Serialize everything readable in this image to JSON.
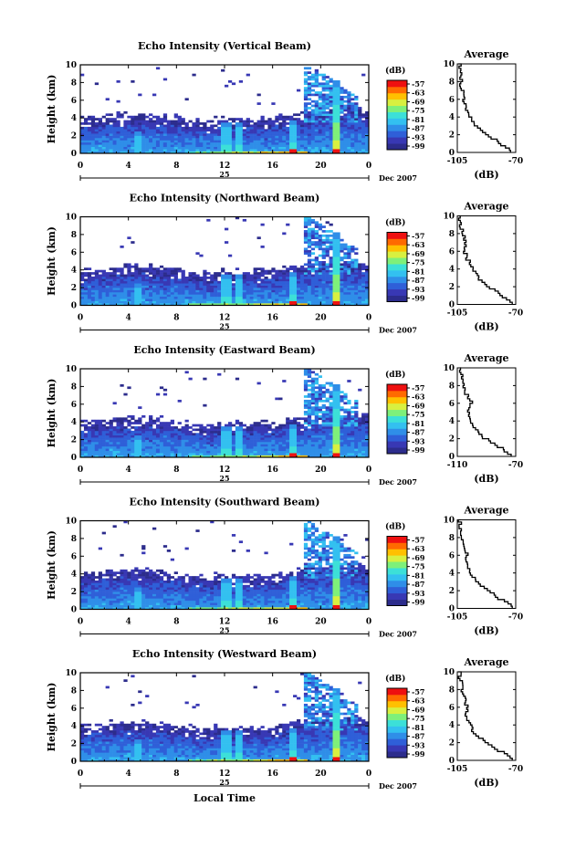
{
  "colors": {
    "scale": [
      "#2c2c8c",
      "#3838b4",
      "#2f5fd8",
      "#2f8ee8",
      "#33c0f0",
      "#3ce0d8",
      "#7ef07a",
      "#d8f040",
      "#ffc000",
      "#ff6a00",
      "#ee1010"
    ],
    "frame": "#000000"
  },
  "chart_data": [
    {
      "type": "heatmap",
      "title": "Echo Intensity (Vertical Beam)",
      "ylabel": "Height (km)",
      "xlabel": "",
      "x_ticks": [
        "0",
        "4",
        "8",
        "12",
        "16",
        "20",
        "0"
      ],
      "x_range": [
        0,
        24
      ],
      "y_ticks": [
        "0",
        "2",
        "4",
        "6",
        "8",
        "10"
      ],
      "y_range": [
        0,
        10
      ],
      "date_day": "25",
      "date_month": "Dec 2007",
      "colorbar": {
        "unit": "(dB)",
        "ticks": [
          "-57",
          "-63",
          "-69",
          "-75",
          "-81",
          "-87",
          "-93",
          "-99"
        ]
      },
      "profile": {
        "title": "Average",
        "xlabel": "(dB)",
        "x_ticks": [
          "-105",
          "-70"
        ],
        "x_range": [
          -105,
          -70
        ],
        "y_ticks": [
          "0",
          "2",
          "4",
          "6",
          "8",
          "10"
        ],
        "y_range": [
          0,
          10
        ],
        "values": [
          -72,
          -80,
          -88,
          -94,
          -97,
          -100,
          -101,
          -102,
          -103,
          -103,
          -104
        ]
      }
    },
    {
      "type": "heatmap",
      "title": "Echo Intensity (Northward Beam)",
      "ylabel": "Height (km)",
      "xlabel": "",
      "x_ticks": [
        "0",
        "4",
        "8",
        "12",
        "16",
        "20",
        "0"
      ],
      "x_range": [
        0,
        24
      ],
      "y_ticks": [
        "0",
        "2",
        "4",
        "6",
        "8",
        "10"
      ],
      "y_range": [
        0,
        10
      ],
      "date_day": "25",
      "date_month": "Dec 2007",
      "colorbar": {
        "unit": "(dB)",
        "ticks": [
          "-57",
          "-63",
          "-69",
          "-75",
          "-81",
          "-87",
          "-93",
          "-99"
        ]
      },
      "profile": {
        "title": "Average",
        "xlabel": "(dB)",
        "x_ticks": [
          "-105",
          "-70"
        ],
        "x_range": [
          -105,
          -70
        ],
        "y_ticks": [
          "0",
          "2",
          "4",
          "6",
          "8",
          "10"
        ],
        "y_range": [
          0,
          10
        ],
        "values": [
          -71,
          -79,
          -87,
          -93,
          -96,
          -99,
          -101,
          -100,
          -102,
          -103,
          -104
        ]
      }
    },
    {
      "type": "heatmap",
      "title": "Echo Intensity (Eastward Beam)",
      "ylabel": "Height (km)",
      "xlabel": "",
      "x_ticks": [
        "0",
        "4",
        "8",
        "12",
        "16",
        "20",
        "0"
      ],
      "x_range": [
        0,
        24
      ],
      "y_ticks": [
        "0",
        "2",
        "4",
        "6",
        "8",
        "10"
      ],
      "y_range": [
        0,
        10
      ],
      "date_day": "25",
      "date_month": "Dec 2007",
      "colorbar": {
        "unit": "(dB)",
        "ticks": [
          "-57",
          "-63",
          "-69",
          "-75",
          "-81",
          "-87",
          "-93",
          "-99"
        ]
      },
      "profile": {
        "title": "Average",
        "xlabel": "(dB)",
        "x_ticks": [
          "-110",
          "-70"
        ],
        "x_range": [
          -110,
          -70
        ],
        "y_ticks": [
          "0",
          "2",
          "4",
          "6",
          "8",
          "10"
        ],
        "y_range": [
          0,
          10
        ],
        "values": [
          -72,
          -82,
          -92,
          -98,
          -101,
          -103,
          -100,
          -104,
          -106,
          -107,
          -108
        ]
      }
    },
    {
      "type": "heatmap",
      "title": "Echo Intensity (Southward Beam)",
      "ylabel": "Height (km)",
      "xlabel": "",
      "x_ticks": [
        "0",
        "4",
        "8",
        "12",
        "16",
        "20",
        "0"
      ],
      "x_range": [
        0,
        24
      ],
      "y_ticks": [
        "0",
        "2",
        "4",
        "6",
        "8",
        "10"
      ],
      "y_range": [
        0,
        10
      ],
      "date_day": "25",
      "date_month": "Dec 2007",
      "colorbar": {
        "unit": "(dB)",
        "ticks": [
          "-57",
          "-63",
          "-69",
          "-75",
          "-81",
          "-87",
          "-93",
          "-99"
        ]
      },
      "profile": {
        "title": "Average",
        "xlabel": "(dB)",
        "x_ticks": [
          "-105",
          "-70"
        ],
        "x_range": [
          -105,
          -70
        ],
        "y_ticks": [
          "0",
          "2",
          "4",
          "6",
          "8",
          "10"
        ],
        "y_range": [
          0,
          10
        ],
        "values": [
          -71,
          -80,
          -88,
          -94,
          -97,
          -100,
          -99,
          -101,
          -102,
          -103,
          -104
        ]
      }
    },
    {
      "type": "heatmap",
      "title": "Echo Intensity (Westward Beam)",
      "ylabel": "Height (km)",
      "xlabel": "Local Time",
      "x_ticks": [
        "0",
        "4",
        "8",
        "12",
        "16",
        "20",
        "0"
      ],
      "x_range": [
        0,
        24
      ],
      "y_ticks": [
        "0",
        "2",
        "4",
        "6",
        "8",
        "10"
      ],
      "y_range": [
        0,
        10
      ],
      "date_day": "25",
      "date_month": "Dec 2007",
      "colorbar": {
        "unit": "(dB)",
        "ticks": [
          "-57",
          "-63",
          "-69",
          "-75",
          "-81",
          "-87",
          "-93",
          "-99"
        ]
      },
      "profile": {
        "title": "Average",
        "xlabel": "(dB)",
        "x_ticks": [
          "-105",
          "-70"
        ],
        "x_range": [
          -105,
          -70
        ],
        "y_ticks": [
          "0",
          "2",
          "4",
          "6",
          "8",
          "10"
        ],
        "y_range": [
          0,
          10
        ],
        "values": [
          -71,
          -80,
          -89,
          -95,
          -98,
          -100,
          -99,
          -101,
          -102,
          -103,
          -104
        ]
      }
    }
  ]
}
